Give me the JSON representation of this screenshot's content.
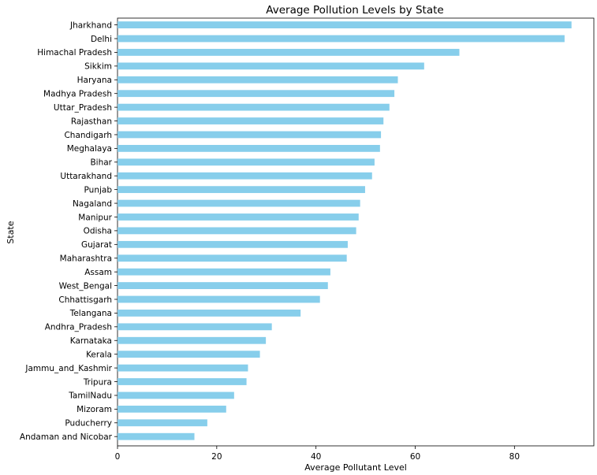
{
  "chart_data": {
    "type": "bar",
    "orientation": "horizontal",
    "title": "Average Pollution Levels by State",
    "xlabel": "Average Pollutant Level",
    "ylabel": "State",
    "xlim": [
      0,
      96
    ],
    "xticks": [
      0,
      20,
      40,
      60,
      80
    ],
    "grid": false,
    "bar_color": "#87ceeb",
    "categories": [
      "Jharkhand",
      "Delhi",
      "Himachal Pradesh",
      "Sikkim",
      "Haryana",
      "Madhya Pradesh",
      "Uttar_Pradesh",
      "Rajasthan",
      "Chandigarh",
      "Meghalaya",
      "Bihar",
      "Uttarakhand",
      "Punjab",
      "Nagaland",
      "Manipur",
      "Odisha",
      "Gujarat",
      "Maharashtra",
      "Assam",
      "West_Bengal",
      "Chhattisgarh",
      "Telangana",
      "Andhra_Pradesh",
      "Karnataka",
      "Kerala",
      "Jammu_and_Kashmir",
      "Tripura",
      "TamilNadu",
      "Mizoram",
      "Puducherry",
      "Andaman and Nicobar"
    ],
    "values": [
      91.5,
      90.1,
      68.9,
      61.8,
      56.5,
      55.8,
      54.8,
      53.6,
      53.1,
      52.9,
      51.8,
      51.3,
      49.9,
      48.9,
      48.6,
      48.1,
      46.4,
      46.2,
      42.9,
      42.4,
      40.8,
      36.9,
      31.1,
      29.9,
      28.7,
      26.3,
      26.0,
      23.5,
      21.9,
      18.1,
      15.5
    ]
  }
}
